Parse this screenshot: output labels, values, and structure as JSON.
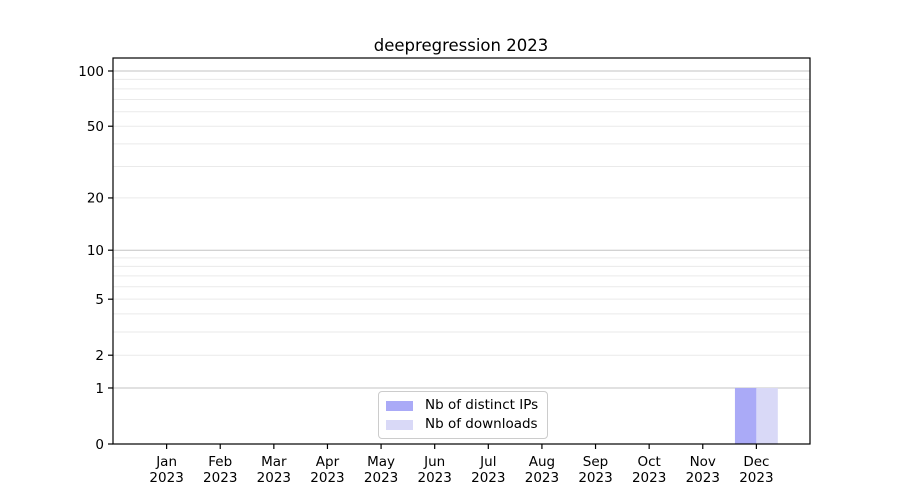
{
  "chart_data": {
    "type": "bar",
    "title": "deepregression 2023",
    "categories": [
      "Jan 2023",
      "Feb 2023",
      "Mar 2023",
      "Apr 2023",
      "May 2023",
      "Jun 2023",
      "Jul 2023",
      "Aug 2023",
      "Sep 2023",
      "Oct 2023",
      "Nov 2023",
      "Dec 2023"
    ],
    "series": [
      {
        "name": "Nb of distinct IPs",
        "color": "#aaaaf7",
        "values": [
          0,
          0,
          0,
          0,
          0,
          0,
          0,
          0,
          0,
          0,
          0,
          1
        ]
      },
      {
        "name": "Nb of downloads",
        "color": "#d9d9f7",
        "values": [
          0,
          0,
          0,
          0,
          0,
          0,
          0,
          0,
          0,
          0,
          0,
          1
        ]
      }
    ],
    "xlabel": "",
    "ylabel": "",
    "yscale": "log1p",
    "ylim": [
      0,
      117
    ],
    "yticks_labeled": [
      0,
      1,
      2,
      5,
      10,
      20,
      50,
      100
    ],
    "gridlines_major": [
      1,
      10,
      100
    ],
    "gridlines_minor": [
      2,
      3,
      4,
      5,
      6,
      7,
      8,
      9,
      20,
      30,
      40,
      50,
      60,
      70,
      80,
      90
    ],
    "grid": true,
    "legend_position": "lower center inside",
    "colors": {
      "major_grid": "#c3c3c3",
      "minor_grid": "#eaeaea",
      "axis": "#000000",
      "tick_text": "#000000",
      "background": "#ffffff"
    }
  }
}
